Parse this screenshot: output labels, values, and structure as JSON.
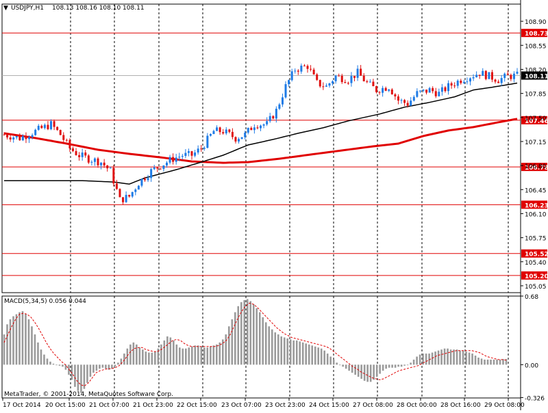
{
  "header": {
    "symbol_label": "USDJPY,H1",
    "ohlc_label": "108.13 108.16 108.10 108.11"
  },
  "indicator": {
    "label": "MACD(5,34,5) 0.056 0.044"
  },
  "footer": {
    "copyright": "MetaTrader, © 2001-2014, MetaQuotes Software Corp."
  },
  "colors": {
    "bull": "#1e7be6",
    "bear": "#e01010",
    "level_line": "#e00000",
    "ma_fast": "#000000",
    "ma_slow": "#e00000",
    "macd_hist": "#9a9a9a",
    "macd_signal": "#e00000",
    "grid": "#000000"
  },
  "chart_data": [
    {
      "type": "candlestick",
      "title": "USDJPY,H1",
      "ylim": [
        104.95,
        109.15
      ],
      "y_ticks": [
        "108.90",
        "108.55",
        "108.20",
        "107.85",
        "107.50",
        "107.15",
        "106.80",
        "106.45",
        "106.10",
        "105.75",
        "105.40",
        "105.05"
      ],
      "x_tick_labels": [
        "17 Oct 2014",
        "20 Oct 15:00",
        "21 Oct 07:00",
        "21 Oct 23:00",
        "22 Oct 15:00",
        "23 Oct 07:00",
        "23 Oct 23:00",
        "24 Oct 15:00",
        "27 Oct 08:00",
        "28 Oct 00:00",
        "28 Oct 16:00",
        "29 Oct 08:00"
      ],
      "current_price": "108.11",
      "horizontal_levels": [
        "108.73",
        "107.46",
        "106.78",
        "106.23",
        "105.52",
        "105.20"
      ],
      "close_path": [
        [
          0,
          107.25
        ],
        [
          5,
          107.2
        ],
        [
          10,
          107.3
        ],
        [
          15,
          107.4
        ],
        [
          18,
          107.25
        ],
        [
          21,
          107.05
        ],
        [
          24,
          106.95
        ],
        [
          27,
          106.9
        ],
        [
          31,
          106.85
        ],
        [
          34,
          106.72
        ],
        [
          37,
          106.3
        ],
        [
          40,
          106.35
        ],
        [
          43,
          106.55
        ],
        [
          47,
          106.72
        ],
        [
          50,
          106.8
        ],
        [
          54,
          106.9
        ],
        [
          57,
          106.95
        ],
        [
          60,
          106.95
        ],
        [
          63,
          107.05
        ],
        [
          67,
          107.3
        ],
        [
          70,
          107.3
        ],
        [
          74,
          107.2
        ],
        [
          77,
          107.25
        ],
        [
          80,
          107.4
        ],
        [
          84,
          107.4
        ],
        [
          87,
          107.6
        ],
        [
          90,
          107.95
        ],
        [
          93,
          108.2
        ],
        [
          97,
          108.25
        ],
        [
          100,
          108.0
        ],
        [
          103,
          107.95
        ],
        [
          106,
          108.1
        ],
        [
          110,
          108.05
        ],
        [
          113,
          108.15
        ],
        [
          116,
          108.0
        ],
        [
          119,
          107.9
        ],
        [
          123,
          107.95
        ],
        [
          126,
          107.75
        ],
        [
          129,
          107.7
        ],
        [
          132,
          107.85
        ],
        [
          136,
          107.9
        ],
        [
          139,
          107.85
        ],
        [
          142,
          107.95
        ],
        [
          146,
          108.05
        ],
        [
          149,
          108.1
        ],
        [
          152,
          108.15
        ],
        [
          155,
          108.1
        ],
        [
          158,
          108.05
        ],
        [
          161,
          108.1
        ],
        [
          164,
          108.11
        ]
      ],
      "ma_fast": [
        [
          0,
          106.58
        ],
        [
          25,
          106.58
        ],
        [
          35,
          106.56
        ],
        [
          40,
          106.53
        ],
        [
          45,
          106.62
        ],
        [
          55,
          106.74
        ],
        [
          63,
          106.85
        ],
        [
          70,
          106.95
        ],
        [
          78,
          107.1
        ],
        [
          86,
          107.18
        ],
        [
          94,
          107.27
        ],
        [
          102,
          107.35
        ],
        [
          110,
          107.45
        ],
        [
          120,
          107.55
        ],
        [
          128,
          107.65
        ],
        [
          136,
          107.72
        ],
        [
          144,
          107.8
        ],
        [
          150,
          107.9
        ],
        [
          156,
          107.94
        ],
        [
          164,
          108.0
        ]
      ],
      "ma_slow": [
        [
          0,
          107.27
        ],
        [
          10,
          107.2
        ],
        [
          20,
          107.12
        ],
        [
          30,
          107.03
        ],
        [
          40,
          106.97
        ],
        [
          50,
          106.92
        ],
        [
          60,
          106.86
        ],
        [
          70,
          106.84
        ],
        [
          78,
          106.85
        ],
        [
          88,
          106.9
        ],
        [
          98,
          106.96
        ],
        [
          108,
          107.02
        ],
        [
          118,
          107.08
        ],
        [
          126,
          107.12
        ],
        [
          134,
          107.23
        ],
        [
          142,
          107.31
        ],
        [
          150,
          107.36
        ],
        [
          158,
          107.43
        ],
        [
          164,
          107.48
        ]
      ]
    },
    {
      "type": "bar",
      "title": "MACD(5,34,5)",
      "ylim": [
        -0.33,
        0.68
      ],
      "y_ticks": [
        "0.68",
        "0.00",
        "-0.326"
      ],
      "series": [
        {
          "name": "MACD",
          "values": [
            0.3,
            0.4,
            0.45,
            0.48,
            0.5,
            0.52,
            0.53,
            0.5,
            0.45,
            0.38,
            0.3,
            0.22,
            0.15,
            0.1,
            0.06,
            0.03,
            0.01,
            0.0,
            -0.01,
            -0.02,
            -0.05,
            -0.1,
            -0.15,
            -0.22,
            -0.26,
            -0.28,
            -0.24,
            -0.18,
            -0.12,
            -0.08,
            -0.06,
            -0.04,
            -0.03,
            -0.04,
            -0.05,
            -0.04,
            -0.02,
            0.02,
            0.06,
            0.11,
            0.16,
            0.2,
            0.22,
            0.2,
            0.17,
            0.15,
            0.13,
            0.12,
            0.12,
            0.13,
            0.16,
            0.2,
            0.24,
            0.28,
            0.27,
            0.24,
            0.2,
            0.17,
            0.16,
            0.16,
            0.17,
            0.18,
            0.19,
            0.19,
            0.18,
            0.17,
            0.17,
            0.18,
            0.19,
            0.2,
            0.22,
            0.25,
            0.3,
            0.38,
            0.45,
            0.52,
            0.58,
            0.62,
            0.64,
            0.65,
            0.63,
            0.6,
            0.56,
            0.52,
            0.47,
            0.42,
            0.38,
            0.35,
            0.32,
            0.3,
            0.28,
            0.27,
            0.26,
            0.25,
            0.24,
            0.24,
            0.23,
            0.22,
            0.21,
            0.2,
            0.19,
            0.18,
            0.17,
            0.16,
            0.14,
            0.11,
            0.08,
            0.05,
            0.02,
            0.0,
            -0.02,
            -0.04,
            -0.06,
            -0.08,
            -0.1,
            -0.12,
            -0.14,
            -0.16,
            -0.17,
            -0.17,
            -0.15,
            -0.12,
            -0.09,
            -0.06,
            -0.04,
            -0.03,
            -0.03,
            -0.03,
            -0.02,
            -0.02,
            -0.01,
            0.0,
            0.02,
            0.05,
            0.08,
            0.1,
            0.11,
            0.11,
            0.11,
            0.12,
            0.13,
            0.14,
            0.15,
            0.16,
            0.16,
            0.15,
            0.15,
            0.15,
            0.14,
            0.14,
            0.13,
            0.12,
            0.11,
            0.09,
            0.07,
            0.06,
            0.05,
            0.05,
            0.05,
            0.05,
            0.05,
            0.05,
            0.056,
            0.056
          ]
        }
      ],
      "signal": [
        0.22,
        0.3,
        0.38,
        0.45,
        0.5,
        0.51,
        0.5,
        0.47,
        0.42,
        0.36,
        0.29,
        0.22,
        0.16,
        0.11,
        0.07,
        0.03,
        0.0,
        -0.05,
        -0.1,
        -0.16,
        -0.2,
        -0.21,
        -0.18,
        -0.13,
        -0.08,
        -0.06,
        -0.05,
        -0.04,
        -0.04,
        -0.03,
        -0.01,
        0.03,
        0.08,
        0.13,
        0.16,
        0.17,
        0.17,
        0.15,
        0.14,
        0.13,
        0.13,
        0.15,
        0.18,
        0.21,
        0.24,
        0.25,
        0.24,
        0.21,
        0.19,
        0.18,
        0.18,
        0.18,
        0.18,
        0.18,
        0.18,
        0.18,
        0.19,
        0.21,
        0.24,
        0.3,
        0.38,
        0.46,
        0.53,
        0.58,
        0.61,
        0.6,
        0.57,
        0.53,
        0.49,
        0.45,
        0.41,
        0.37,
        0.34,
        0.31,
        0.29,
        0.27,
        0.26,
        0.25,
        0.24,
        0.23,
        0.22,
        0.21,
        0.2,
        0.19,
        0.18,
        0.16,
        0.13,
        0.1,
        0.07,
        0.04,
        0.01,
        -0.02,
        -0.04,
        -0.07,
        -0.09,
        -0.11,
        -0.13,
        -0.14,
        -0.15,
        -0.14,
        -0.12,
        -0.1,
        -0.08,
        -0.06,
        -0.05,
        -0.04,
        -0.03,
        -0.02,
        -0.01,
        0.01,
        0.03,
        0.05,
        0.07,
        0.09,
        0.1,
        0.11,
        0.12,
        0.13,
        0.14,
        0.14,
        0.14,
        0.14,
        0.14,
        0.13,
        0.12,
        0.1,
        0.08,
        0.07,
        0.06,
        0.05,
        0.05,
        0.044
      ]
    }
  ]
}
